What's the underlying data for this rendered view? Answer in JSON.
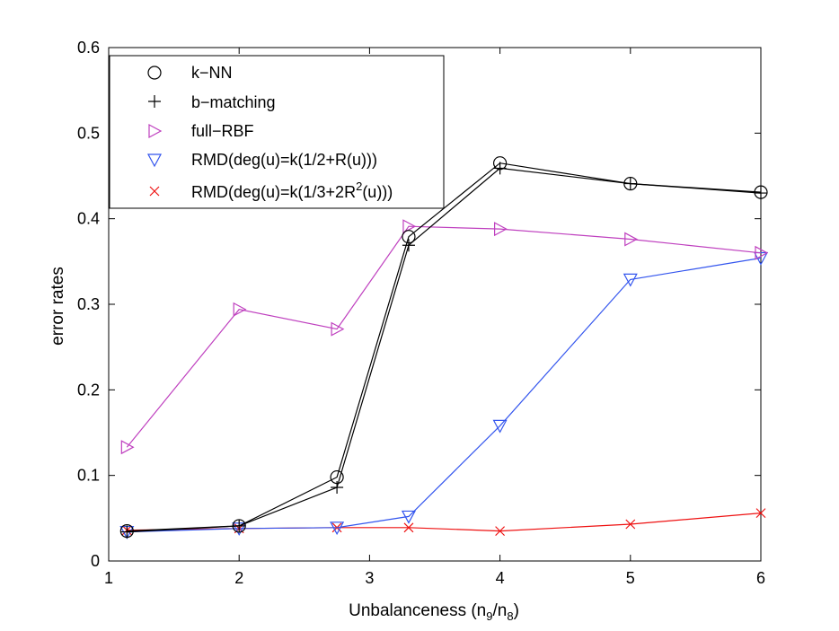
{
  "chart_data": {
    "type": "line",
    "xlabel": "Unbalanceness (n",
    "xlabel_sub1": "9",
    "xlabel_mid": "/n",
    "xlabel_sub2": "8",
    "xlabel_end": ")",
    "ylabel": "error rates",
    "xlim": [
      1,
      6
    ],
    "ylim": [
      0,
      0.6
    ],
    "xticks": [
      1,
      2,
      3,
      4,
      5,
      6
    ],
    "xtick_labels": [
      "1",
      "2",
      "3",
      "4",
      "5",
      "6"
    ],
    "yticks": [
      0,
      0.1,
      0.2,
      0.3,
      0.4,
      0.5,
      0.6
    ],
    "ytick_labels": [
      "0",
      "0.1",
      "0.2",
      "0.3",
      "0.4",
      "0.5",
      "0.6"
    ],
    "grid": false,
    "legend_position": "top-left",
    "series": [
      {
        "name": "k−NN",
        "marker": "circle",
        "color": "#000000",
        "x": [
          1.14,
          2,
          2.75,
          3.3,
          4,
          5,
          6
        ],
        "y": [
          0.035,
          0.041,
          0.098,
          0.379,
          0.465,
          0.441,
          0.431
        ]
      },
      {
        "name": "b−matching",
        "marker": "plus",
        "color": "#000000",
        "x": [
          1.14,
          2,
          2.75,
          3.3,
          4,
          5,
          6
        ],
        "y": [
          0.034,
          0.041,
          0.086,
          0.369,
          0.459,
          0.441,
          0.43
        ]
      },
      {
        "name": "full−RBF",
        "marker": "triangle-right",
        "color": "#bf40bf",
        "x": [
          1.14,
          2,
          2.75,
          3.3,
          4,
          5,
          6
        ],
        "y": [
          0.133,
          0.294,
          0.271,
          0.391,
          0.388,
          0.376,
          0.36
        ]
      },
      {
        "name": "RMD(deg(u)=k(1/2+R(u)))",
        "marker": "triangle-down",
        "color": "#3355ee",
        "x": [
          1.14,
          2,
          2.75,
          3.3,
          4,
          5,
          6
        ],
        "y": [
          0.034,
          0.038,
          0.039,
          0.052,
          0.158,
          0.329,
          0.354
        ]
      },
      {
        "name": "RMD(deg(u)=k(1/3+2R",
        "name_sup": "2",
        "name_end": "(u)))",
        "marker": "x",
        "color": "#ee1111",
        "x": [
          1.14,
          2,
          2.75,
          3.3,
          4,
          5,
          6
        ],
        "y": [
          0.036,
          0.038,
          0.039,
          0.039,
          0.035,
          0.043,
          0.056
        ]
      }
    ]
  }
}
